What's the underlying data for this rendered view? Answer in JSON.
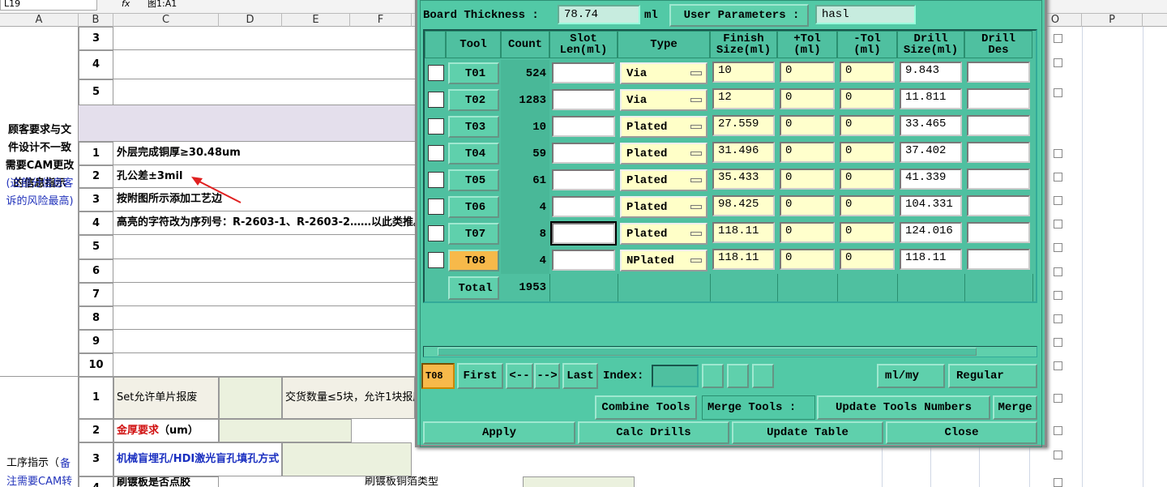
{
  "excel": {
    "name_box": "L19",
    "fx": "fx",
    "formula": "图1:A1",
    "columns": [
      "A",
      "B",
      "C",
      "D",
      "E",
      "F",
      "O",
      "P"
    ],
    "section1_label": "顾客要求与文件设计不一致需要CAM更改的信息指示",
    "section1_note": "(这部分信息客诉的风险最高)",
    "top_rows": [
      "3",
      "4",
      "5"
    ],
    "row_numbers": [
      "1",
      "2",
      "3",
      "4",
      "5",
      "6",
      "7",
      "8",
      "9",
      "10"
    ],
    "row_texts": [
      "外层完成铜厚≥30.48um",
      "孔公差±3mil",
      "按附图所示添加工艺边",
      "高亮的字符改为序列号：R-2603-1、R-2603-2……以此类推。"
    ],
    "section2_label": "工序指示（",
    "section2_note": "备注需要CAM转",
    "section2_rows": [
      {
        "num": "1",
        "label": "Set允许单片报废",
        "value": "交货数量≤5块，允许1块报废"
      },
      {
        "num": "2",
        "label_red": "金厚要求",
        "label": "（um）"
      },
      {
        "num": "3",
        "label_blue": "机械盲埋孔/HDI激光盲孔填孔方式"
      },
      {
        "num": "4",
        "label": "刷镀板是否点胶",
        "value": "刷镀板铜箔类型"
      }
    ]
  },
  "dialog": {
    "board_thickness_label": "Board Thickness :",
    "board_thickness": "78.74",
    "unit": "ml",
    "user_params_label": "User Parameters :",
    "user_params": "hasl",
    "headers": [
      "Tool",
      "Count",
      "Slot\nLen(ml)",
      "Type",
      "Finish\nSize(ml)",
      "+Tol\n(ml)",
      "-Tol\n(ml)",
      "Drill\nSize(ml)",
      "Drill\nDes"
    ],
    "rows": [
      [
        "T01",
        "524",
        "Via",
        "10",
        "0",
        "0",
        "9.843"
      ],
      [
        "T02",
        "1283",
        "Via",
        "12",
        "0",
        "0",
        "11.811"
      ],
      [
        "T03",
        "10",
        "Plated",
        "27.559",
        "0",
        "0",
        "33.465"
      ],
      [
        "T04",
        "59",
        "Plated",
        "31.496",
        "0",
        "0",
        "37.402"
      ],
      [
        "T05",
        "61",
        "Plated",
        "35.433",
        "0",
        "0",
        "41.339"
      ],
      [
        "T06",
        "4",
        "Plated",
        "98.425",
        "0",
        "0",
        "104.331"
      ],
      [
        "T07",
        "8",
        "Plated",
        "118.11",
        "0",
        "0",
        "124.016"
      ],
      [
        "T08",
        "4",
        "NPlated",
        "118.11",
        "0",
        "0",
        "118.11"
      ]
    ],
    "total_label": "Total",
    "total": "1953",
    "current_tool": "T08",
    "nav": [
      "First",
      "<--",
      "-->",
      "Last"
    ],
    "index_label": "Index:",
    "units_menu": "ml/my",
    "mode_menu": "Regular",
    "combine": "Combine Tools",
    "merge_label": "Merge Tools :",
    "merge_menu": "Update Tools Numbers",
    "merge": "Merge",
    "actions": [
      "Apply",
      "Calc Drills",
      "Update Table",
      "Close"
    ]
  }
}
